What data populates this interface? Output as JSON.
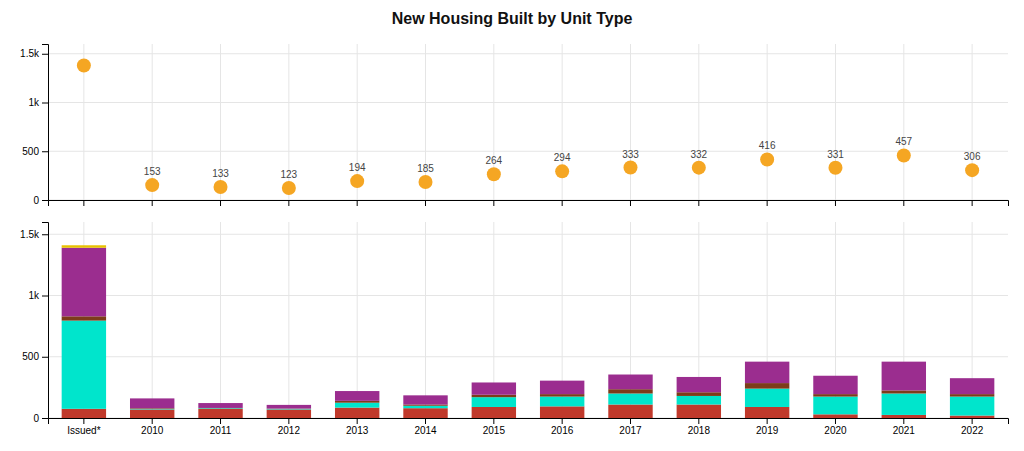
{
  "chart_data": [
    {
      "type": "scatter",
      "title": "New Housing Built by Unit Type",
      "categories": [
        "Issued*",
        "2010",
        "2011",
        "2012",
        "2013",
        "2014",
        "2015",
        "2016",
        "2017",
        "2018",
        "2019",
        "2020",
        "2021",
        "2022"
      ],
      "values": [
        1380,
        153,
        133,
        123,
        194,
        185,
        264,
        294,
        333,
        332,
        416,
        331,
        457,
        306
      ],
      "value_labels": [
        null,
        "153",
        "133",
        "123",
        "194",
        "185",
        "264",
        "294",
        "333",
        "332",
        "416",
        "331",
        "457",
        "306"
      ],
      "data_labels": true,
      "color": "#f5a623",
      "marker": "circle",
      "ylim": [
        0,
        1600
      ],
      "yticks": [
        0,
        500,
        {
          "value": 1000,
          "label": "1k"
        },
        {
          "value": 1500,
          "label": "1.5k"
        }
      ],
      "grid": true,
      "tick_labels": "y"
    },
    {
      "type": "bar",
      "stacked": true,
      "categories": [
        "Issued*",
        "2010",
        "2011",
        "2012",
        "2013",
        "2014",
        "2015",
        "2016",
        "2017",
        "2018",
        "2019",
        "2020",
        "2021",
        "2022"
      ],
      "series": [
        {
          "color": "#c0392b",
          "values": [
            75,
            70,
            75,
            70,
            85,
            80,
            90,
            95,
            110,
            110,
            90,
            30,
            25,
            20
          ]
        },
        {
          "color": "#00e5cc",
          "values": [
            720,
            5,
            5,
            5,
            40,
            20,
            80,
            80,
            90,
            70,
            150,
            145,
            175,
            155
          ]
        },
        {
          "color": "#7d3c1a",
          "values": [
            35,
            5,
            2,
            2,
            15,
            10,
            20,
            20,
            35,
            30,
            45,
            20,
            25,
            20
          ]
        },
        {
          "color": "#9b2d8f",
          "values": [
            560,
            80,
            40,
            30,
            80,
            75,
            100,
            110,
            120,
            125,
            175,
            150,
            235,
            130
          ]
        },
        {
          "color": "#e8c200",
          "values": [
            20,
            0,
            0,
            0,
            0,
            0,
            0,
            0,
            0,
            0,
            0,
            0,
            0,
            0
          ]
        }
      ],
      "ylim": [
        0,
        1600
      ],
      "yticks": [
        0,
        500,
        {
          "value": 1000,
          "label": "1k"
        },
        {
          "value": 1500,
          "label": "1.5k"
        }
      ],
      "grid": true
    }
  ]
}
